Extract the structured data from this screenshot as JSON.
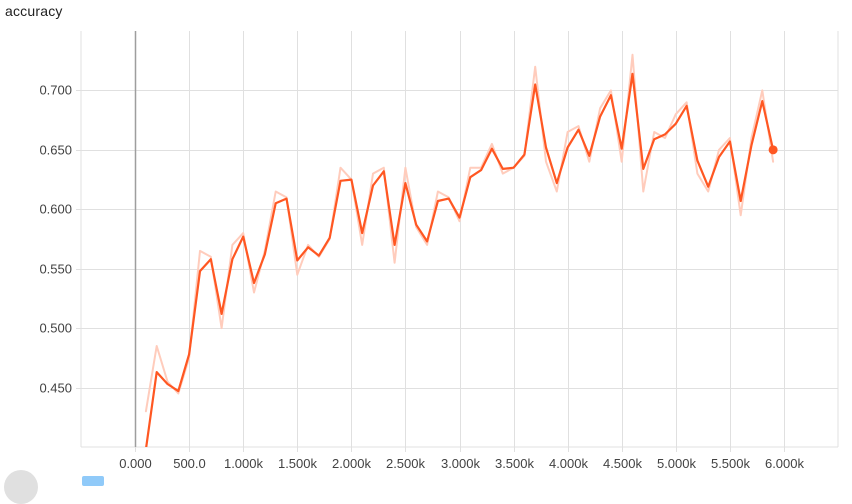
{
  "chart_data": {
    "type": "line",
    "title": "accuracy",
    "xlim": [
      -500,
      6500
    ],
    "ylim": [
      0.4,
      0.75
    ],
    "x_ticks": [
      0,
      500,
      1000,
      1500,
      2000,
      2500,
      3000,
      3500,
      4000,
      4500,
      5000,
      5500,
      6000
    ],
    "x_tick_labels": [
      "0.000",
      "500.0",
      "1.000k",
      "1.500k",
      "2.000k",
      "2.500k",
      "3.000k",
      "3.500k",
      "4.000k",
      "4.500k",
      "5.000k",
      "5.500k",
      "6.000k"
    ],
    "y_ticks": [
      0.45,
      0.5,
      0.55,
      0.6,
      0.65,
      0.7
    ],
    "y_tick_labels": [
      "0.450",
      "0.500",
      "0.550",
      "0.600",
      "0.650",
      "0.700"
    ],
    "grid": true,
    "colors": {
      "smoothed": "#ff5722",
      "raw": "#ffccbc",
      "axis": "#9e9e9e",
      "grid": "#e0e0e0"
    },
    "series": [
      {
        "style": "raw",
        "x": [
          100,
          200,
          300,
          400,
          500,
          600,
          700,
          800,
          900,
          1000,
          1100,
          1200,
          1300,
          1400,
          1500,
          1600,
          1700,
          1800,
          1900,
          2000,
          2100,
          2200,
          2300,
          2400,
          2500,
          2600,
          2700,
          2800,
          2900,
          3000,
          3100,
          3200,
          3300,
          3400,
          3500,
          3600,
          3700,
          3800,
          3900,
          4000,
          4100,
          4200,
          4300,
          4400,
          4500,
          4600,
          4700,
          4800,
          4900,
          5000,
          5100,
          5200,
          5300,
          5400,
          5500,
          5600,
          5700,
          5800,
          5900
        ],
        "y": [
          0.43,
          0.485,
          0.455,
          0.445,
          0.475,
          0.565,
          0.56,
          0.5,
          0.57,
          0.58,
          0.53,
          0.565,
          0.615,
          0.61,
          0.545,
          0.57,
          0.56,
          0.575,
          0.635,
          0.625,
          0.57,
          0.63,
          0.635,
          0.555,
          0.635,
          0.585,
          0.57,
          0.615,
          0.61,
          0.59,
          0.635,
          0.635,
          0.655,
          0.63,
          0.635,
          0.645,
          0.72,
          0.64,
          0.615,
          0.665,
          0.67,
          0.64,
          0.685,
          0.7,
          0.64,
          0.73,
          0.615,
          0.665,
          0.66,
          0.68,
          0.69,
          0.63,
          0.615,
          0.65,
          0.66,
          0.595,
          0.66,
          0.7,
          0.64
        ]
      },
      {
        "style": "smoothed",
        "x": [
          100,
          200,
          300,
          400,
          500,
          600,
          700,
          800,
          900,
          1000,
          1100,
          1200,
          1300,
          1400,
          1500,
          1600,
          1700,
          1800,
          1900,
          2000,
          2100,
          2200,
          2300,
          2400,
          2500,
          2600,
          2700,
          2800,
          2900,
          3000,
          3100,
          3200,
          3300,
          3400,
          3500,
          3600,
          3700,
          3800,
          3900,
          4000,
          4100,
          4200,
          4300,
          4400,
          4500,
          4600,
          4700,
          4800,
          4900,
          5000,
          5100,
          5200,
          5300,
          5400,
          5500,
          5600,
          5700,
          5800,
          5900
        ],
        "y": [
          0.398,
          0.463,
          0.453,
          0.447,
          0.478,
          0.548,
          0.558,
          0.512,
          0.558,
          0.577,
          0.538,
          0.562,
          0.605,
          0.609,
          0.557,
          0.568,
          0.561,
          0.576,
          0.624,
          0.625,
          0.58,
          0.62,
          0.632,
          0.57,
          0.622,
          0.587,
          0.573,
          0.607,
          0.609,
          0.593,
          0.627,
          0.633,
          0.651,
          0.634,
          0.635,
          0.646,
          0.705,
          0.652,
          0.622,
          0.652,
          0.667,
          0.645,
          0.678,
          0.696,
          0.651,
          0.714,
          0.634,
          0.659,
          0.663,
          0.672,
          0.687,
          0.641,
          0.619,
          0.644,
          0.657,
          0.607,
          0.654,
          0.691,
          0.65
        ]
      }
    ]
  }
}
